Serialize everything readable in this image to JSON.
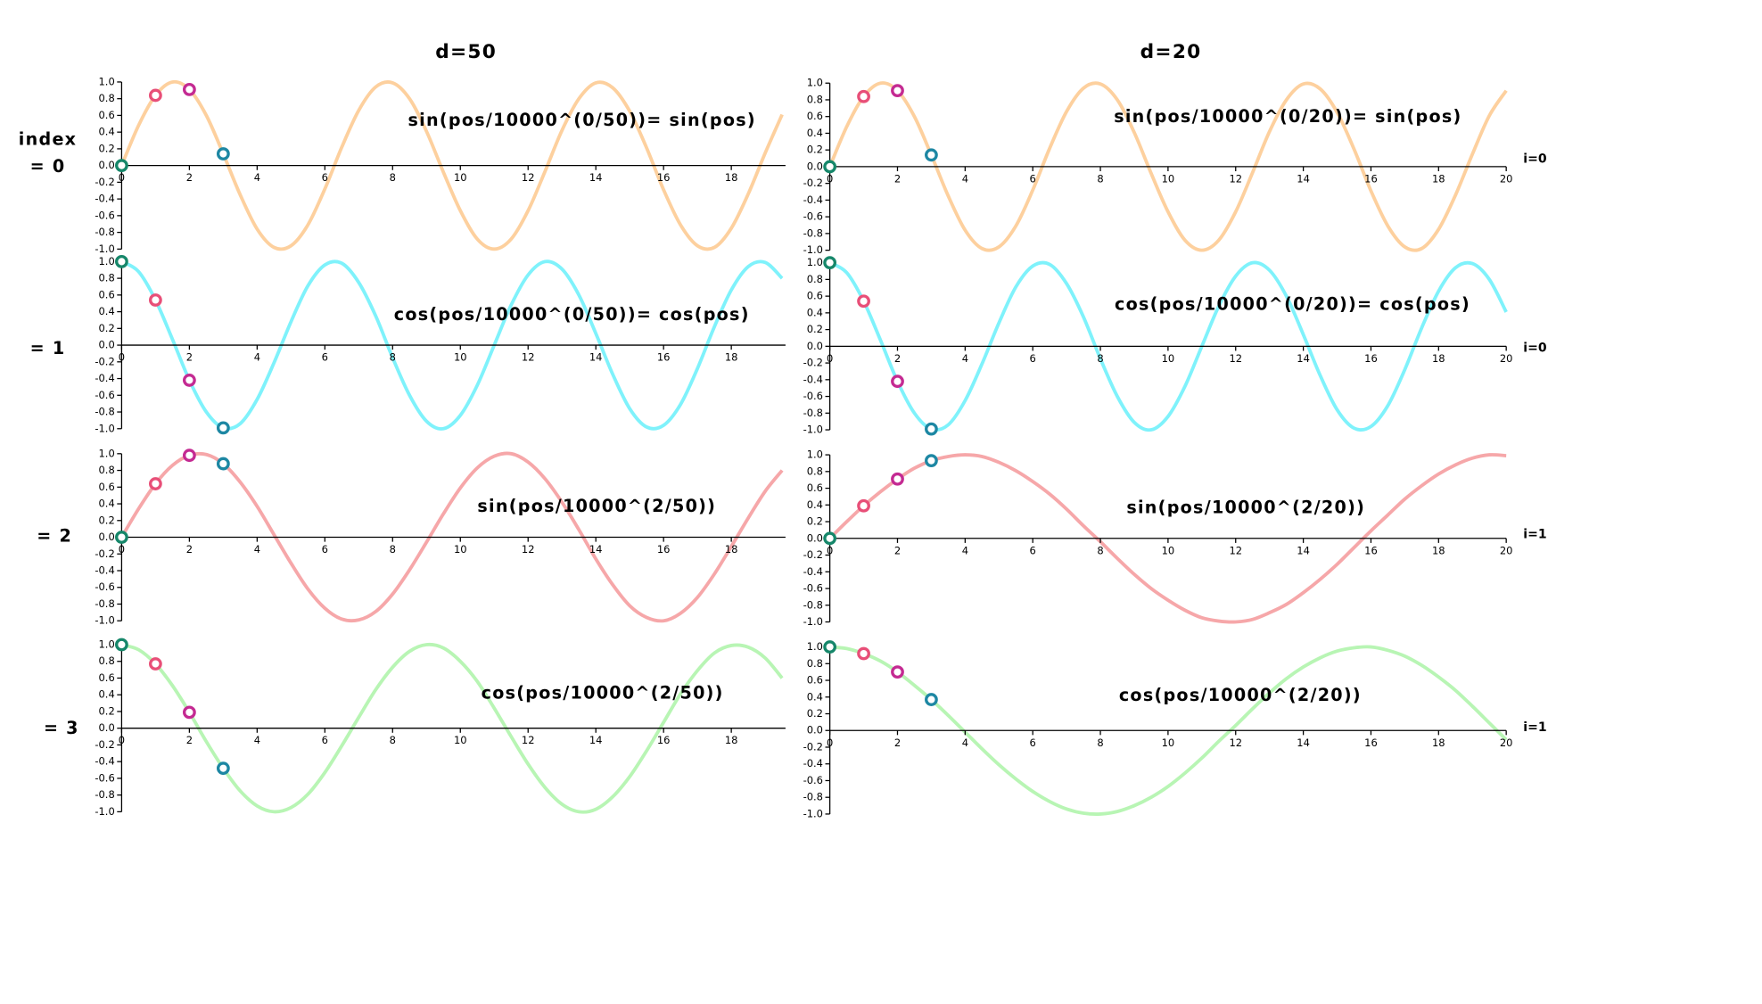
{
  "column_titles": [
    "d=50",
    "d=20"
  ],
  "row_header": "index",
  "row_labels": [
    "= 0",
    "= 1",
    "= 2",
    "= 3"
  ],
  "chart_data": [
    {
      "type": "line",
      "annotation": "sin(pos/10000^(0/50))= sin(pos)",
      "x": [
        0,
        0.5,
        1,
        1.5,
        2,
        2.5,
        3,
        3.5,
        4,
        4.5,
        5,
        5.5,
        6,
        6.5,
        7,
        7.5,
        8,
        8.5,
        9,
        9.5,
        10,
        10.5,
        11,
        11.5,
        12,
        12.5,
        13,
        13.5,
        14,
        14.5,
        15,
        15.5,
        16,
        16.5,
        17,
        17.5,
        18,
        18.5,
        19,
        19.5
      ],
      "series": [
        {
          "color": "#fdd09e",
          "values": [
            0,
            0.48,
            0.84,
            1.0,
            0.91,
            0.6,
            0.14,
            -0.35,
            -0.76,
            -0.98,
            -0.96,
            -0.71,
            -0.28,
            0.22,
            0.66,
            0.94,
            0.99,
            0.8,
            0.41,
            -0.08,
            -0.54,
            -0.88,
            -1.0,
            -0.88,
            -0.54,
            -0.07,
            0.42,
            0.8,
            0.99,
            0.93,
            0.65,
            0.21,
            -0.29,
            -0.71,
            -0.96,
            -0.98,
            -0.75,
            -0.34,
            0.15,
            0.61
          ]
        }
      ],
      "markers": {
        "x": [
          0,
          1,
          2,
          3
        ],
        "values": [
          0,
          0.84,
          0.91,
          0.14
        ],
        "colors": [
          "#16876a",
          "#e84f78",
          "#c42a92",
          "#1d87a3"
        ]
      },
      "xlim": [
        0,
        19.6
      ],
      "xticks": [
        0,
        2,
        4,
        6,
        8,
        10,
        12,
        14,
        16,
        18
      ],
      "ylim": [
        -1,
        1
      ],
      "yticks": [
        {
          "value": 1,
          "label": "1.0"
        },
        0.8,
        0.6,
        0.4,
        0.2,
        {
          "value": 0,
          "label": "0.0"
        },
        -0.2,
        -0.4,
        -0.6,
        -0.8,
        {
          "value": -1,
          "label": "-1.0"
        }
      ]
    },
    {
      "type": "line",
      "annotation": "cos(pos/10000^(0/50))= cos(pos)",
      "x": [
        0,
        0.5,
        1,
        1.5,
        2,
        2.5,
        3,
        3.5,
        4,
        4.5,
        5,
        5.5,
        6,
        6.5,
        7,
        7.5,
        8,
        8.5,
        9,
        9.5,
        10,
        10.5,
        11,
        11.5,
        12,
        12.5,
        13,
        13.5,
        14,
        14.5,
        15,
        15.5,
        16,
        16.5,
        17,
        17.5,
        18,
        18.5,
        19,
        19.5
      ],
      "series": [
        {
          "color": "#7ff2fb",
          "values": [
            1,
            0.88,
            0.54,
            0.07,
            -0.42,
            -0.8,
            -0.99,
            -0.94,
            -0.65,
            -0.21,
            0.28,
            0.71,
            0.96,
            0.98,
            0.75,
            0.35,
            -0.15,
            -0.6,
            -0.91,
            -1.0,
            -0.84,
            -0.48,
            0.0,
            0.48,
            0.84,
            1.0,
            0.91,
            0.6,
            0.14,
            -0.35,
            -0.76,
            -0.98,
            -0.96,
            -0.71,
            -0.28,
            0.22,
            0.66,
            0.94,
            0.99,
            0.8
          ]
        }
      ],
      "markers": {
        "x": [
          0,
          1,
          2,
          3
        ],
        "values": [
          1,
          0.54,
          -0.42,
          -0.99
        ],
        "colors": [
          "#16876a",
          "#e84f78",
          "#c42a92",
          "#1d87a3"
        ]
      },
      "xlim": [
        0,
        19.6
      ],
      "xticks": [
        0,
        2,
        4,
        6,
        8,
        10,
        12,
        14,
        16,
        18
      ],
      "ylim": [
        -1,
        1
      ],
      "yticks": [
        {
          "value": 1,
          "label": "1.0"
        },
        0.8,
        0.6,
        0.4,
        0.2,
        {
          "value": 0,
          "label": "0.0"
        },
        -0.2,
        -0.4,
        -0.6,
        -0.8,
        {
          "value": -1,
          "label": "-1.0"
        }
      ]
    },
    {
      "type": "line",
      "annotation": "sin(pos/10000^(2/50))",
      "x": [
        0,
        0.5,
        1,
        1.5,
        2,
        2.5,
        3,
        3.5,
        4,
        4.5,
        5,
        5.5,
        6,
        6.5,
        7,
        7.5,
        8,
        8.5,
        9,
        9.5,
        10,
        10.5,
        11,
        11.5,
        12,
        12.5,
        13,
        13.5,
        14,
        14.5,
        15,
        15.5,
        16,
        16.5,
        17,
        17.5,
        18,
        18.5,
        19,
        19.5
      ],
      "series": [
        {
          "color": "#f6a7a9",
          "values": [
            0,
            0.34,
            0.64,
            0.86,
            0.98,
            0.99,
            0.88,
            0.66,
            0.37,
            0.03,
            -0.31,
            -0.62,
            -0.85,
            -0.98,
            -0.99,
            -0.89,
            -0.68,
            -0.39,
            -0.06,
            0.28,
            0.59,
            0.83,
            0.97,
            1.0,
            0.9,
            0.7,
            0.42,
            0.09,
            -0.26,
            -0.57,
            -0.82,
            -0.96,
            -1.0,
            -0.91,
            -0.72,
            -0.44,
            -0.11,
            0.23,
            0.55,
            0.8
          ]
        }
      ],
      "markers": {
        "x": [
          0,
          1,
          2,
          3
        ],
        "values": [
          0,
          0.64,
          0.98,
          0.88
        ],
        "colors": [
          "#16876a",
          "#e84f78",
          "#c42a92",
          "#1d87a3"
        ]
      },
      "xlim": [
        0,
        19.6
      ],
      "xticks": [
        0,
        2,
        4,
        6,
        8,
        10,
        12,
        14,
        16,
        18
      ],
      "ylim": [
        -1,
        1
      ],
      "yticks": [
        {
          "value": 1,
          "label": "1.0"
        },
        0.8,
        0.6,
        0.4,
        0.2,
        {
          "value": 0,
          "label": "0.0"
        },
        -0.2,
        -0.4,
        -0.6,
        -0.8,
        {
          "value": -1,
          "label": "-1.0"
        }
      ]
    },
    {
      "type": "line",
      "annotation": "cos(pos/10000^(2/50))",
      "x": [
        0,
        0.5,
        1,
        1.5,
        2,
        2.5,
        3,
        3.5,
        4,
        4.5,
        5,
        5.5,
        6,
        6.5,
        7,
        7.5,
        8,
        8.5,
        9,
        9.5,
        10,
        10.5,
        11,
        11.5,
        12,
        12.5,
        13,
        13.5,
        14,
        14.5,
        15,
        15.5,
        16,
        16.5,
        17,
        17.5,
        18,
        18.5,
        19,
        19.5
      ],
      "series": [
        {
          "color": "#b8f5b4",
          "values": [
            1,
            0.94,
            0.77,
            0.51,
            0.19,
            -0.16,
            -0.48,
            -0.75,
            -0.93,
            -1.0,
            -0.95,
            -0.79,
            -0.53,
            -0.21,
            0.13,
            0.46,
            0.73,
            0.92,
            1.0,
            0.96,
            0.8,
            0.56,
            0.24,
            -0.1,
            -0.43,
            -0.71,
            -0.91,
            -1.0,
            -0.97,
            -0.82,
            -0.58,
            -0.27,
            0.07,
            0.41,
            0.69,
            0.9,
            0.99,
            0.97,
            0.84,
            0.6
          ]
        }
      ],
      "markers": {
        "x": [
          0,
          1,
          2,
          3
        ],
        "values": [
          1,
          0.77,
          0.19,
          -0.48
        ],
        "colors": [
          "#16876a",
          "#e84f78",
          "#c42a92",
          "#1d87a3"
        ]
      },
      "xlim": [
        0,
        19.6
      ],
      "xticks": [
        0,
        2,
        4,
        6,
        8,
        10,
        12,
        14,
        16,
        18
      ],
      "ylim": [
        -1,
        1
      ],
      "yticks": [
        {
          "value": 1,
          "label": "1.0"
        },
        0.8,
        0.6,
        0.4,
        0.2,
        {
          "value": 0,
          "label": "0.0"
        },
        -0.2,
        -0.4,
        -0.6,
        -0.8,
        {
          "value": -1,
          "label": "-1.0"
        }
      ]
    },
    {
      "type": "line",
      "annotation": "sin(pos/10000^(0/20))= sin(pos)",
      "i_label": "i=0",
      "x": [
        0,
        0.5,
        1,
        1.5,
        2,
        2.5,
        3,
        3.5,
        4,
        4.5,
        5,
        5.5,
        6,
        6.5,
        7,
        7.5,
        8,
        8.5,
        9,
        9.5,
        10,
        10.5,
        11,
        11.5,
        12,
        12.5,
        13,
        13.5,
        14,
        14.5,
        15,
        15.5,
        16,
        16.5,
        17,
        17.5,
        18,
        18.5,
        19,
        19.5,
        20
      ],
      "series": [
        {
          "color": "#fdd09e",
          "values": [
            0,
            0.48,
            0.84,
            1.0,
            0.91,
            0.6,
            0.14,
            -0.35,
            -0.76,
            -0.98,
            -0.96,
            -0.71,
            -0.28,
            0.22,
            0.66,
            0.94,
            0.99,
            0.8,
            0.41,
            -0.08,
            -0.54,
            -0.88,
            -1.0,
            -0.88,
            -0.54,
            -0.07,
            0.42,
            0.8,
            0.99,
            0.93,
            0.65,
            0.21,
            -0.29,
            -0.71,
            -0.96,
            -0.98,
            -0.75,
            -0.34,
            0.15,
            0.61,
            0.91
          ]
        }
      ],
      "markers": {
        "x": [
          0,
          1,
          2,
          3
        ],
        "values": [
          0,
          0.84,
          0.91,
          0.14
        ],
        "colors": [
          "#16876a",
          "#e84f78",
          "#c42a92",
          "#1d87a3"
        ]
      },
      "xlim": [
        0,
        20
      ],
      "xticks": [
        0,
        2,
        4,
        6,
        8,
        10,
        12,
        14,
        16,
        18,
        20
      ],
      "ylim": [
        -1,
        1
      ],
      "yticks": [
        {
          "value": 1,
          "label": "1.0"
        },
        0.8,
        0.6,
        0.4,
        0.2,
        {
          "value": 0,
          "label": "0.0"
        },
        -0.2,
        -0.4,
        -0.6,
        -0.8,
        {
          "value": -1,
          "label": "-1.0"
        }
      ]
    },
    {
      "type": "line",
      "annotation": "cos(pos/10000^(0/20))= cos(pos)",
      "i_label": "i=0",
      "x": [
        0,
        0.5,
        1,
        1.5,
        2,
        2.5,
        3,
        3.5,
        4,
        4.5,
        5,
        5.5,
        6,
        6.5,
        7,
        7.5,
        8,
        8.5,
        9,
        9.5,
        10,
        10.5,
        11,
        11.5,
        12,
        12.5,
        13,
        13.5,
        14,
        14.5,
        15,
        15.5,
        16,
        16.5,
        17,
        17.5,
        18,
        18.5,
        19,
        19.5,
        20
      ],
      "series": [
        {
          "color": "#7ff2fb",
          "values": [
            1,
            0.88,
            0.54,
            0.07,
            -0.42,
            -0.8,
            -0.99,
            -0.94,
            -0.65,
            -0.21,
            0.28,
            0.71,
            0.96,
            0.98,
            0.75,
            0.35,
            -0.15,
            -0.6,
            -0.91,
            -1.0,
            -0.84,
            -0.48,
            0.0,
            0.48,
            0.84,
            1.0,
            0.91,
            0.6,
            0.14,
            -0.35,
            -0.76,
            -0.98,
            -0.96,
            -0.71,
            -0.28,
            0.22,
            0.66,
            0.94,
            0.99,
            0.8,
            0.41
          ]
        }
      ],
      "markers": {
        "x": [
          0,
          1,
          2,
          3
        ],
        "values": [
          1,
          0.54,
          -0.42,
          -0.99
        ],
        "colors": [
          "#16876a",
          "#e84f78",
          "#c42a92",
          "#1d87a3"
        ]
      },
      "xlim": [
        0,
        20
      ],
      "xticks": [
        0,
        2,
        4,
        6,
        8,
        10,
        12,
        14,
        16,
        18,
        20
      ],
      "ylim": [
        -1,
        1
      ],
      "yticks": [
        {
          "value": 1,
          "label": "1.0"
        },
        0.8,
        0.6,
        0.4,
        0.2,
        {
          "value": 0,
          "label": "0.0"
        },
        -0.2,
        -0.4,
        -0.6,
        -0.8,
        {
          "value": -1,
          "label": "-1.0"
        }
      ]
    },
    {
      "type": "line",
      "annotation": "sin(pos/10000^(2/20))",
      "i_label": "i=1",
      "x": [
        0,
        0.5,
        1,
        1.5,
        2,
        2.5,
        3,
        3.5,
        4,
        4.5,
        5,
        5.5,
        6,
        6.5,
        7,
        7.5,
        8,
        8.5,
        9,
        9.5,
        10,
        10.5,
        11,
        11.5,
        12,
        12.5,
        13,
        13.5,
        14,
        14.5,
        15,
        15.5,
        16,
        16.5,
        17,
        17.5,
        18,
        18.5,
        19,
        19.5,
        20
      ],
      "series": [
        {
          "color": "#f6a7a9",
          "values": [
            0,
            0.2,
            0.39,
            0.56,
            0.71,
            0.84,
            0.93,
            0.98,
            1.0,
            0.98,
            0.91,
            0.81,
            0.68,
            0.53,
            0.35,
            0.15,
            -0.04,
            -0.24,
            -0.43,
            -0.6,
            -0.74,
            -0.86,
            -0.95,
            -0.99,
            -1.0,
            -0.97,
            -0.89,
            -0.79,
            -0.65,
            -0.49,
            -0.31,
            -0.11,
            0.09,
            0.28,
            0.47,
            0.63,
            0.77,
            0.88,
            0.96,
            1.0,
            0.99
          ]
        }
      ],
      "markers": {
        "x": [
          0,
          1,
          2,
          3
        ],
        "values": [
          0,
          0.39,
          0.71,
          0.93
        ],
        "colors": [
          "#16876a",
          "#e84f78",
          "#c42a92",
          "#1d87a3"
        ]
      },
      "xlim": [
        0,
        20
      ],
      "xticks": [
        0,
        2,
        4,
        6,
        8,
        10,
        12,
        14,
        16,
        18,
        20
      ],
      "ylim": [
        -1,
        1
      ],
      "yticks": [
        {
          "value": 1,
          "label": "1.0"
        },
        0.8,
        0.6,
        0.4,
        0.2,
        {
          "value": 0,
          "label": "0.0"
        },
        -0.2,
        -0.4,
        -0.6,
        -0.8,
        {
          "value": -1,
          "label": "-1.0"
        }
      ]
    },
    {
      "type": "line",
      "annotation": "cos(pos/10000^(2/20))",
      "i_label": "i=1",
      "x": [
        0,
        0.5,
        1,
        1.5,
        2,
        2.5,
        3,
        3.5,
        4,
        4.5,
        5,
        5.5,
        6,
        6.5,
        7,
        7.5,
        8,
        8.5,
        9,
        9.5,
        10,
        10.5,
        11,
        11.5,
        12,
        12.5,
        13,
        13.5,
        14,
        14.5,
        15,
        15.5,
        16,
        16.5,
        17,
        17.5,
        18,
        18.5,
        19,
        19.5,
        20
      ],
      "series": [
        {
          "color": "#b8f5b4",
          "values": [
            1,
            0.98,
            0.92,
            0.83,
            0.7,
            0.54,
            0.37,
            0.18,
            -0.02,
            -0.22,
            -0.41,
            -0.58,
            -0.73,
            -0.85,
            -0.94,
            -0.99,
            -1.0,
            -0.97,
            -0.9,
            -0.8,
            -0.67,
            -0.51,
            -0.33,
            -0.13,
            0.06,
            0.26,
            0.45,
            0.62,
            0.76,
            0.87,
            0.95,
            0.99,
            1.0,
            0.96,
            0.89,
            0.78,
            0.64,
            0.48,
            0.29,
            0.09,
            -0.11
          ]
        }
      ],
      "markers": {
        "x": [
          0,
          1,
          2,
          3
        ],
        "values": [
          1,
          0.92,
          0.7,
          0.37
        ],
        "colors": [
          "#16876a",
          "#e84f78",
          "#c42a92",
          "#1d87a3"
        ]
      },
      "xlim": [
        0,
        20
      ],
      "xticks": [
        0,
        2,
        4,
        6,
        8,
        10,
        12,
        14,
        16,
        18,
        20
      ],
      "ylim": [
        -1,
        1
      ],
      "yticks": [
        {
          "value": 1,
          "label": "1.0"
        },
        0.8,
        0.6,
        0.4,
        0.2,
        {
          "value": 0,
          "label": "0.0"
        },
        -0.2,
        -0.4,
        -0.6,
        -0.8,
        {
          "value": -1,
          "label": "-1.0"
        }
      ]
    }
  ]
}
